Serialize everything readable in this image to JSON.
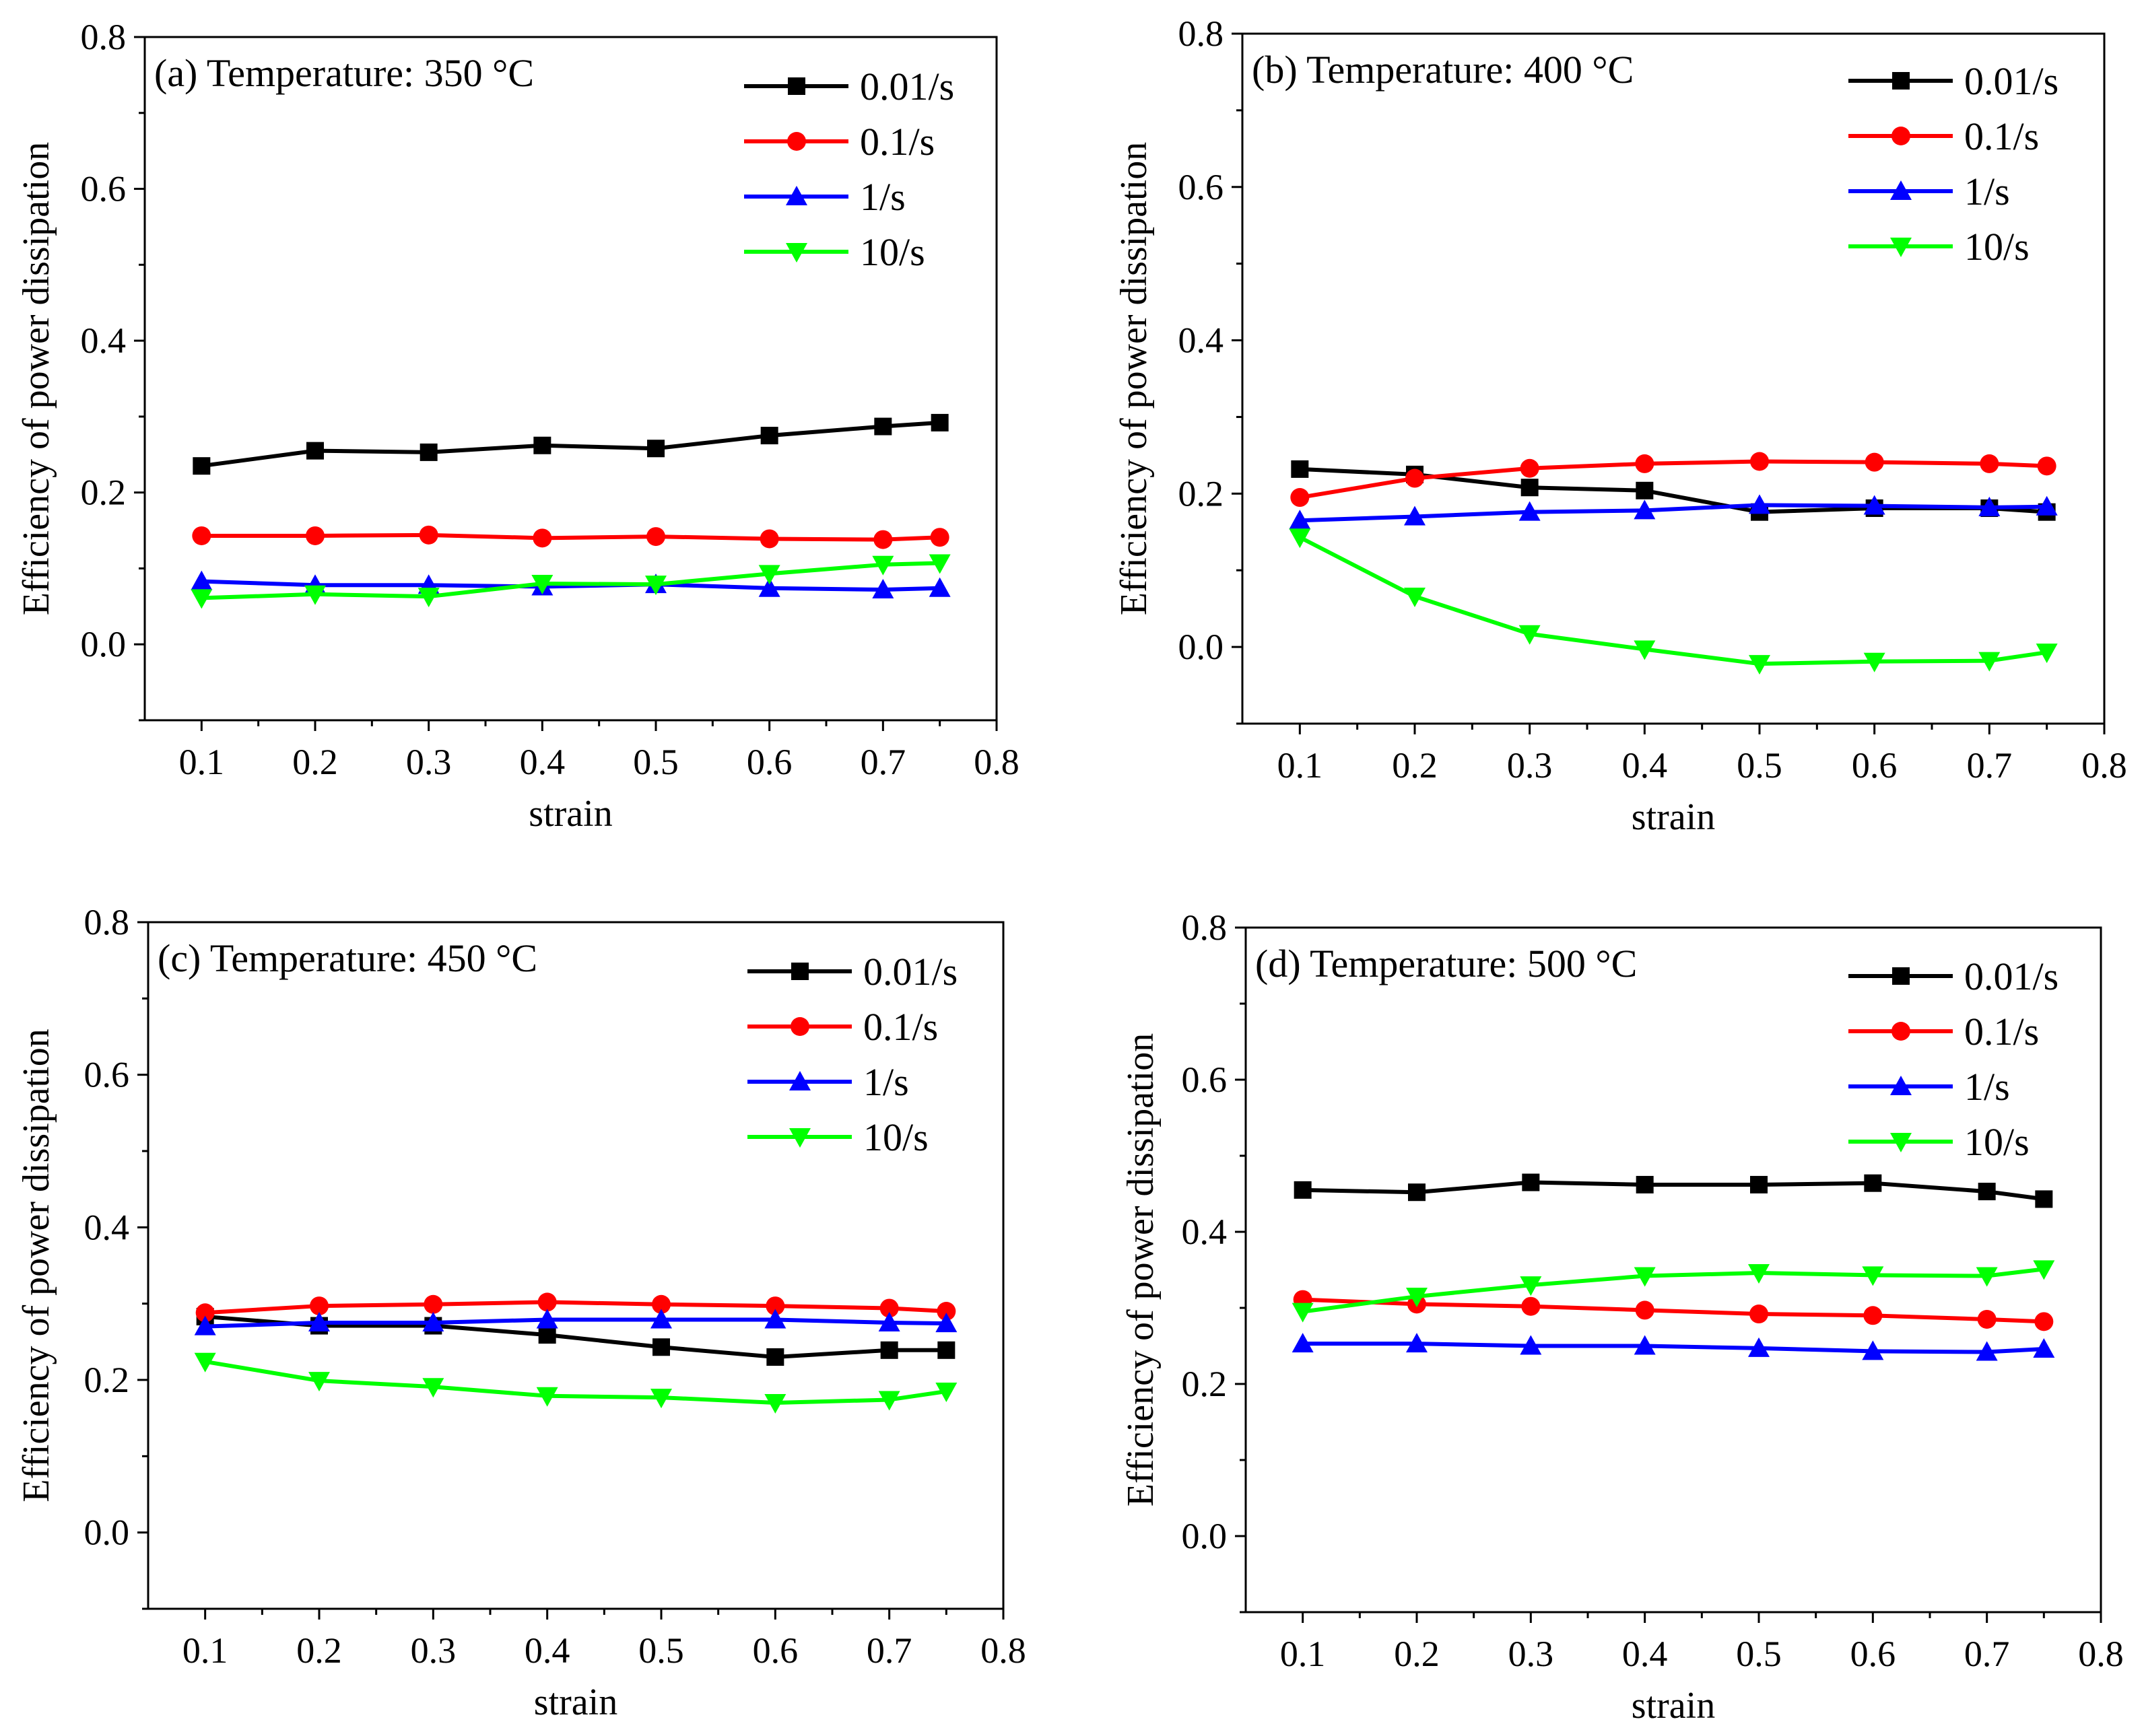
{
  "chart_data": [
    {
      "type": "line",
      "title": "(a) Temperature: 350 °C",
      "xlabel": "strain",
      "ylabel": "Efficiency of power dissipation",
      "xlim": [
        0.05,
        0.8
      ],
      "ylim": [
        -0.1,
        0.8
      ],
      "xticks": [
        "0.1",
        "0.2",
        "0.3",
        "0.4",
        "0.5",
        "0.6",
        "0.7",
        "0.8"
      ],
      "yticks": [
        "0.0",
        "0.2",
        "0.4",
        "0.6",
        "0.8"
      ],
      "legend_position": "top-right",
      "grid": false,
      "x": [
        0.1,
        0.2,
        0.3,
        0.4,
        0.5,
        0.6,
        0.7,
        0.75
      ],
      "series": [
        {
          "name": "0.01/s",
          "color": "#000000",
          "marker": "square",
          "values": [
            0.235,
            0.255,
            0.253,
            0.262,
            0.258,
            0.275,
            0.287,
            0.292
          ]
        },
        {
          "name": "0.1/s",
          "color": "#ff0000",
          "marker": "circle",
          "values": [
            0.143,
            0.143,
            0.144,
            0.14,
            0.142,
            0.139,
            0.138,
            0.141
          ]
        },
        {
          "name": "1/s",
          "color": "#0000ff",
          "marker": "triangle-up",
          "values": [
            0.083,
            0.078,
            0.078,
            0.076,
            0.079,
            0.074,
            0.072,
            0.074
          ]
        },
        {
          "name": "10/s",
          "color": "#00ff00",
          "marker": "triangle-down",
          "values": [
            0.061,
            0.066,
            0.063,
            0.08,
            0.079,
            0.093,
            0.105,
            0.107
          ]
        }
      ]
    },
    {
      "type": "line",
      "title": "(b) Temperature: 400 °C",
      "xlabel": "strain",
      "ylabel": "Efficiency of power dissipation",
      "xlim": [
        0.05,
        0.8
      ],
      "ylim": [
        -0.1,
        0.8
      ],
      "xticks": [
        "0.1",
        "0.2",
        "0.3",
        "0.4",
        "0.5",
        "0.6",
        "0.7",
        "0.8"
      ],
      "yticks": [
        "0.0",
        "0.2",
        "0.4",
        "0.6",
        "0.8"
      ],
      "legend_position": "top-right",
      "grid": false,
      "x": [
        0.1,
        0.2,
        0.3,
        0.4,
        0.5,
        0.6,
        0.7,
        0.75
      ],
      "series": [
        {
          "name": "0.01/s",
          "color": "#000000",
          "marker": "square",
          "values": [
            0.232,
            0.225,
            0.208,
            0.204,
            0.176,
            0.181,
            0.181,
            0.176
          ]
        },
        {
          "name": "0.1/s",
          "color": "#ff0000",
          "marker": "circle",
          "values": [
            0.195,
            0.22,
            0.233,
            0.239,
            0.242,
            0.241,
            0.239,
            0.236
          ]
        },
        {
          "name": "1/s",
          "color": "#0000ff",
          "marker": "triangle-up",
          "values": [
            0.165,
            0.17,
            0.176,
            0.178,
            0.185,
            0.184,
            0.182,
            0.183
          ]
        },
        {
          "name": "10/s",
          "color": "#00ff00",
          "marker": "triangle-down",
          "values": [
            0.143,
            0.066,
            0.017,
            -0.003,
            -0.022,
            -0.019,
            -0.018,
            -0.007
          ]
        }
      ]
    },
    {
      "type": "line",
      "title": "(c) Temperature: 450 °C",
      "xlabel": "strain",
      "ylabel": "Efficiency of power dissipation",
      "xlim": [
        0.05,
        0.8
      ],
      "ylim": [
        -0.1,
        0.8
      ],
      "xticks": [
        "0.1",
        "0.2",
        "0.3",
        "0.4",
        "0.5",
        "0.6",
        "0.7",
        "0.8"
      ],
      "yticks": [
        "0.0",
        "0.2",
        "0.4",
        "0.6",
        "0.8"
      ],
      "legend_position": "top-right",
      "grid": false,
      "x": [
        0.1,
        0.2,
        0.3,
        0.4,
        0.5,
        0.6,
        0.7,
        0.75
      ],
      "series": [
        {
          "name": "0.01/s",
          "color": "#000000",
          "marker": "square",
          "values": [
            0.283,
            0.271,
            0.271,
            0.259,
            0.243,
            0.23,
            0.239,
            0.239
          ]
        },
        {
          "name": "0.1/s",
          "color": "#ff0000",
          "marker": "circle",
          "values": [
            0.288,
            0.297,
            0.299,
            0.302,
            0.299,
            0.297,
            0.294,
            0.29
          ]
        },
        {
          "name": "1/s",
          "color": "#0000ff",
          "marker": "triangle-up",
          "values": [
            0.27,
            0.275,
            0.275,
            0.279,
            0.279,
            0.279,
            0.275,
            0.274
          ]
        },
        {
          "name": "10/s",
          "color": "#00ff00",
          "marker": "triangle-down",
          "values": [
            0.224,
            0.199,
            0.191,
            0.179,
            0.177,
            0.17,
            0.174,
            0.185
          ]
        }
      ]
    },
    {
      "type": "line",
      "title": "(d) Temperature: 500 °C",
      "xlabel": "strain",
      "ylabel": "Efficiency of power dissipation",
      "xlim": [
        0.05,
        0.8
      ],
      "ylim": [
        -0.1,
        0.8
      ],
      "xticks": [
        "0.1",
        "0.2",
        "0.3",
        "0.4",
        "0.5",
        "0.6",
        "0.7",
        "0.8"
      ],
      "yticks": [
        "0.0",
        "0.2",
        "0.4",
        "0.6",
        "0.8"
      ],
      "legend_position": "top-right",
      "grid": false,
      "x": [
        0.1,
        0.2,
        0.3,
        0.4,
        0.5,
        0.6,
        0.7,
        0.75
      ],
      "series": [
        {
          "name": "0.01/s",
          "color": "#000000",
          "marker": "square",
          "values": [
            0.455,
            0.452,
            0.465,
            0.462,
            0.462,
            0.464,
            0.453,
            0.443
          ]
        },
        {
          "name": "0.1/s",
          "color": "#ff0000",
          "marker": "circle",
          "values": [
            0.311,
            0.305,
            0.302,
            0.297,
            0.292,
            0.29,
            0.285,
            0.282
          ]
        },
        {
          "name": "1/s",
          "color": "#0000ff",
          "marker": "triangle-up",
          "values": [
            0.253,
            0.253,
            0.25,
            0.25,
            0.247,
            0.243,
            0.242,
            0.246
          ]
        },
        {
          "name": "10/s",
          "color": "#00ff00",
          "marker": "triangle-down",
          "values": [
            0.295,
            0.315,
            0.33,
            0.342,
            0.346,
            0.343,
            0.342,
            0.351
          ]
        }
      ]
    }
  ]
}
